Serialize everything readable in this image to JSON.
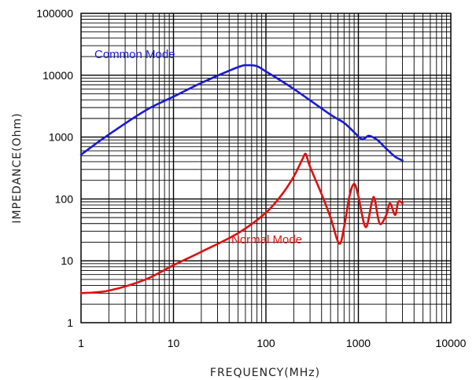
{
  "chart_data": {
    "type": "line",
    "x_scale": "log",
    "y_scale": "log",
    "xlim": [
      1,
      10000
    ],
    "ylim": [
      1,
      100000
    ],
    "xlabel": "FREQUENCY(MHz)",
    "ylabel": "IMPEDANCE(Ohm)",
    "grid": true,
    "x_ticks": [
      "1",
      "10",
      "100",
      "1000",
      "10000"
    ],
    "y_ticks": [
      "1",
      "10",
      "100",
      "1000",
      "10000",
      "100000"
    ],
    "series": [
      {
        "name": "Common Mode",
        "color": "#1a1ad6",
        "x": [
          1,
          2,
          5,
          10,
          20,
          50,
          65,
          80,
          100,
          200,
          500,
          700,
          900,
          1100,
          1300,
          1600,
          2000,
          2500,
          3000
        ],
        "y": [
          520,
          1100,
          2700,
          4500,
          7500,
          13500,
          14500,
          14000,
          11500,
          6000,
          2300,
          1700,
          1200,
          920,
          1050,
          900,
          650,
          480,
          420
        ]
      },
      {
        "name": "Normal Mode",
        "color": "#e01010",
        "x": [
          1,
          2,
          5,
          10,
          20,
          50,
          100,
          150,
          200,
          250,
          270,
          300,
          400,
          500,
          620,
          700,
          800,
          900,
          1000,
          1200,
          1400,
          1500,
          1700,
          2000,
          2200,
          2500,
          2700,
          3000
        ],
        "y": [
          3,
          3.3,
          5,
          8.5,
          14,
          28,
          60,
          120,
          230,
          450,
          530,
          330,
          120,
          50,
          19,
          35,
          110,
          175,
          110,
          35,
          90,
          100,
          40,
          55,
          85,
          55,
          90,
          85
        ]
      }
    ]
  }
}
